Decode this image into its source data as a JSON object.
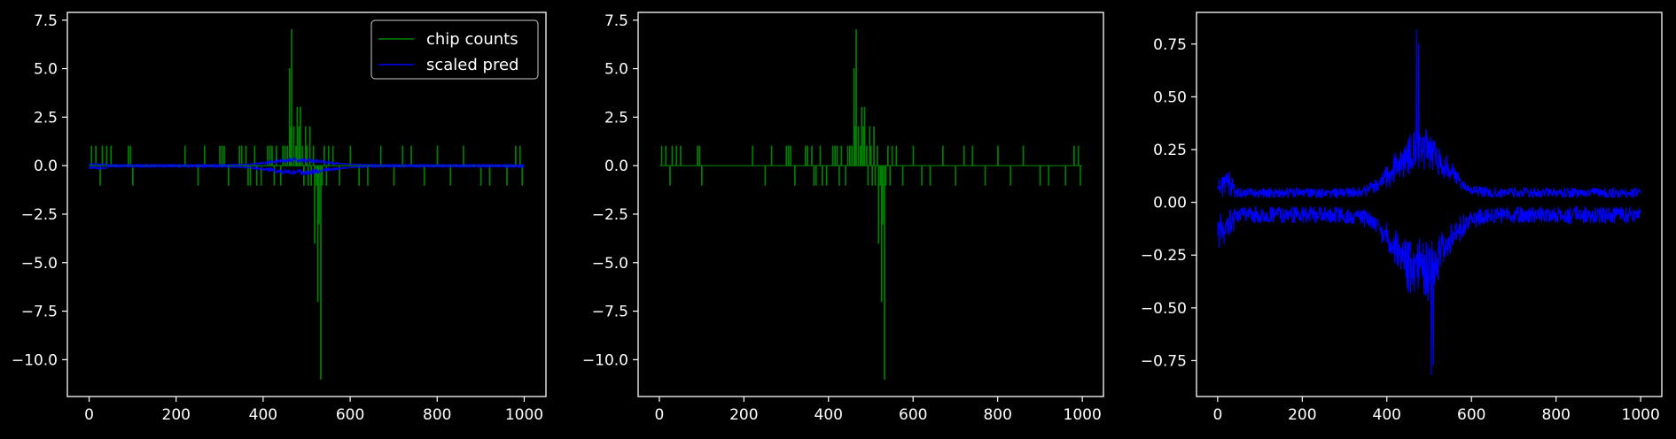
{
  "theme": {
    "background": "#000000",
    "foreground": "#ffffff",
    "green": "#008000",
    "blue": "#0000ff"
  },
  "chart_data": [
    {
      "type": "line",
      "title": "",
      "xlabel": "",
      "ylabel": "",
      "xlim": [
        -50,
        1050
      ],
      "ylim": [
        -11.9,
        7.9
      ],
      "xticks": [
        0,
        200,
        400,
        600,
        800,
        1000
      ],
      "yticks": [
        -10.0,
        -7.5,
        -5.0,
        -2.5,
        0.0,
        2.5,
        5.0,
        7.5
      ],
      "ytick_format": 1,
      "grid": false,
      "legend": "top-right",
      "series": [
        {
          "name": "chip counts",
          "color": "#008000",
          "kind": "spikes",
          "spikes": [
            [
              5,
              1
            ],
            [
              15,
              1
            ],
            [
              25,
              -1
            ],
            [
              30,
              1
            ],
            [
              40,
              1
            ],
            [
              50,
              1
            ],
            [
              90,
              1
            ],
            [
              95,
              1
            ],
            [
              100,
              -1
            ],
            [
              220,
              1
            ],
            [
              250,
              -1
            ],
            [
              265,
              1
            ],
            [
              300,
              1
            ],
            [
              305,
              1
            ],
            [
              310,
              1
            ],
            [
              320,
              -1
            ],
            [
              345,
              1
            ],
            [
              350,
              1
            ],
            [
              360,
              1
            ],
            [
              365,
              -1
            ],
            [
              370,
              -1
            ],
            [
              380,
              1
            ],
            [
              385,
              -1
            ],
            [
              395,
              -1
            ],
            [
              410,
              1
            ],
            [
              415,
              1
            ],
            [
              420,
              1
            ],
            [
              425,
              -1
            ],
            [
              430,
              1
            ],
            [
              440,
              -1
            ],
            [
              445,
              1
            ],
            [
              450,
              1
            ],
            [
              455,
              1
            ],
            [
              460,
              5
            ],
            [
              462,
              2
            ],
            [
              465,
              7
            ],
            [
              470,
              2
            ],
            [
              475,
              1
            ],
            [
              478,
              3
            ],
            [
              482,
              2
            ],
            [
              485,
              3
            ],
            [
              490,
              1
            ],
            [
              493,
              -1
            ],
            [
              497,
              2
            ],
            [
              500,
              1
            ],
            [
              503,
              -1
            ],
            [
              507,
              2
            ],
            [
              510,
              -1
            ],
            [
              515,
              1
            ],
            [
              518,
              -4
            ],
            [
              522,
              -1
            ],
            [
              525,
              -7
            ],
            [
              528,
              -3
            ],
            [
              532,
              -11
            ],
            [
              535,
              -1
            ],
            [
              540,
              1
            ],
            [
              545,
              -1
            ],
            [
              550,
              1
            ],
            [
              560,
              1
            ],
            [
              575,
              -1
            ],
            [
              600,
              1
            ],
            [
              620,
              -1
            ],
            [
              640,
              -1
            ],
            [
              670,
              1
            ],
            [
              700,
              -1
            ],
            [
              720,
              1
            ],
            [
              740,
              1
            ],
            [
              770,
              -1
            ],
            [
              800,
              1
            ],
            [
              830,
              -1
            ],
            [
              860,
              1
            ],
            [
              900,
              -1
            ],
            [
              920,
              -1
            ],
            [
              960,
              -1
            ],
            [
              980,
              1
            ],
            [
              990,
              1
            ],
            [
              995,
              -1
            ]
          ]
        },
        {
          "name": "scaled pred",
          "color": "#0000ff",
          "kind": "noise",
          "n": 1000,
          "noise_upper": [
            0.02,
            0.06
          ],
          "noise_lower": [
            -0.02,
            -0.08
          ],
          "peak_center": 480,
          "peak_width": 85,
          "peak_upper": 0.35,
          "peak_lower": -0.45
        }
      ]
    },
    {
      "type": "line",
      "title": "",
      "xlabel": "",
      "ylabel": "",
      "xlim": [
        -50,
        1050
      ],
      "ylim": [
        -11.9,
        7.9
      ],
      "xticks": [
        0,
        200,
        400,
        600,
        800,
        1000
      ],
      "yticks": [
        -10.0,
        -7.5,
        -5.0,
        -2.5,
        0.0,
        2.5,
        5.0,
        7.5
      ],
      "ytick_format": 1,
      "grid": false,
      "legend": "none",
      "series": [
        {
          "name": "",
          "color": "#008000",
          "kind": "spikes",
          "spikes": [
            [
              5,
              1
            ],
            [
              15,
              1
            ],
            [
              25,
              -1
            ],
            [
              30,
              1
            ],
            [
              40,
              1
            ],
            [
              50,
              1
            ],
            [
              90,
              1
            ],
            [
              95,
              1
            ],
            [
              100,
              -1
            ],
            [
              220,
              1
            ],
            [
              250,
              -1
            ],
            [
              265,
              1
            ],
            [
              300,
              1
            ],
            [
              305,
              1
            ],
            [
              310,
              1
            ],
            [
              320,
              -1
            ],
            [
              345,
              1
            ],
            [
              350,
              1
            ],
            [
              360,
              1
            ],
            [
              365,
              -1
            ],
            [
              370,
              -1
            ],
            [
              380,
              1
            ],
            [
              385,
              -1
            ],
            [
              395,
              -1
            ],
            [
              410,
              1
            ],
            [
              415,
              1
            ],
            [
              420,
              1
            ],
            [
              425,
              -1
            ],
            [
              430,
              1
            ],
            [
              440,
              -1
            ],
            [
              445,
              1
            ],
            [
              450,
              1
            ],
            [
              455,
              1
            ],
            [
              460,
              5
            ],
            [
              462,
              2
            ],
            [
              465,
              7
            ],
            [
              470,
              2
            ],
            [
              475,
              1
            ],
            [
              478,
              3
            ],
            [
              482,
              2
            ],
            [
              485,
              3
            ],
            [
              490,
              1
            ],
            [
              493,
              -1
            ],
            [
              497,
              2
            ],
            [
              500,
              1
            ],
            [
              503,
              -1
            ],
            [
              507,
              2
            ],
            [
              510,
              -1
            ],
            [
              515,
              1
            ],
            [
              518,
              -4
            ],
            [
              522,
              -1
            ],
            [
              525,
              -7
            ],
            [
              528,
              -3
            ],
            [
              532,
              -11
            ],
            [
              535,
              -1
            ],
            [
              540,
              1
            ],
            [
              545,
              -1
            ],
            [
              550,
              1
            ],
            [
              560,
              1
            ],
            [
              575,
              -1
            ],
            [
              600,
              1
            ],
            [
              620,
              -1
            ],
            [
              640,
              -1
            ],
            [
              670,
              1
            ],
            [
              700,
              -1
            ],
            [
              720,
              1
            ],
            [
              740,
              1
            ],
            [
              770,
              -1
            ],
            [
              800,
              1
            ],
            [
              830,
              -1
            ],
            [
              860,
              1
            ],
            [
              900,
              -1
            ],
            [
              920,
              -1
            ],
            [
              960,
              -1
            ],
            [
              980,
              1
            ],
            [
              990,
              1
            ],
            [
              995,
              -1
            ]
          ]
        }
      ]
    },
    {
      "type": "line",
      "title": "",
      "xlabel": "",
      "ylabel": "",
      "xlim": [
        -50,
        1050
      ],
      "ylim": [
        -0.92,
        0.9
      ],
      "xticks": [
        0,
        200,
        400,
        600,
        800,
        1000
      ],
      "yticks": [
        -0.75,
        -0.5,
        -0.25,
        0.0,
        0.25,
        0.5,
        0.75
      ],
      "ytick_format": 2,
      "grid": false,
      "legend": "none",
      "series": [
        {
          "name": "",
          "color": "#0000ff",
          "kind": "noise",
          "n": 1000,
          "noise_upper": [
            0.02,
            0.07
          ],
          "noise_lower": [
            -0.02,
            -0.1
          ],
          "peak_center": 480,
          "peak_width": 80,
          "peak_upper": 0.3,
          "peak_lower": -0.4,
          "spike_upper": [
            [
              470,
              0.82
            ],
            [
              475,
              0.75
            ]
          ],
          "spike_lower": [
            [
              505,
              -0.82
            ],
            [
              510,
              -0.77
            ]
          ]
        }
      ]
    }
  ]
}
